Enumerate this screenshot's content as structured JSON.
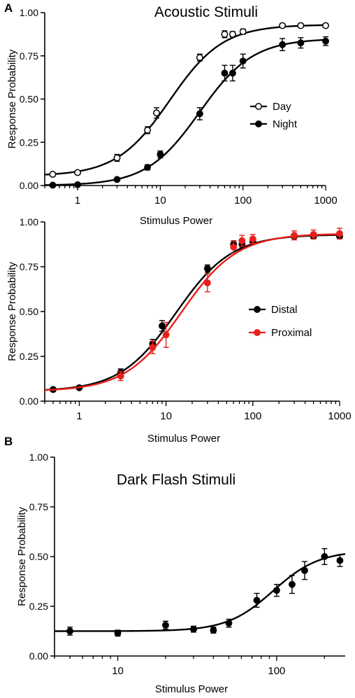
{
  "panel_labels": {
    "a": "A",
    "b": "B"
  },
  "chart_data": [
    {
      "type": "scatter",
      "title": "Acoustic Stimuli",
      "xlabel": "Stimulus Power",
      "ylabel": "Response Probability",
      "xscale": "log",
      "xlim": [
        0.4,
        1000
      ],
      "ylim": [
        0,
        1
      ],
      "xticks": [
        1,
        10,
        100,
        1000
      ],
      "xtick_labels": [
        "1",
        "10",
        "100",
        "1000"
      ],
      "yticks": [
        0,
        0.25,
        0.5,
        0.75,
        1.0
      ],
      "ytick_labels": [
        "0.00",
        "0.25",
        "0.50",
        "0.75",
        "1.00"
      ],
      "grid": false,
      "legend_position": "right",
      "series": [
        {
          "name": "Day",
          "color": "#000000",
          "marker": "open-circle",
          "x": [
            0.5,
            1,
            3,
            7,
            9,
            30,
            60,
            75,
            100,
            300,
            500,
            1000
          ],
          "y": [
            0.065,
            0.075,
            0.16,
            0.32,
            0.42,
            0.74,
            0.875,
            0.875,
            0.89,
            0.925,
            0.925,
            0.925
          ],
          "err": [
            0.01,
            0.01,
            0.02,
            0.02,
            0.03,
            0.02,
            0.02,
            0.015,
            0.015,
            0.01,
            0.01,
            0.01
          ],
          "fit": {
            "bottom": 0.055,
            "top": 0.93,
            "ec50": 13,
            "hill": 1.35
          }
        },
        {
          "name": "Night",
          "color": "#000000",
          "marker": "filled-circle",
          "x": [
            0.5,
            1,
            3,
            7,
            10,
            30,
            60,
            75,
            100,
            300,
            500,
            1000
          ],
          "y": [
            0.002,
            0.005,
            0.035,
            0.105,
            0.18,
            0.415,
            0.65,
            0.65,
            0.72,
            0.815,
            0.825,
            0.835
          ],
          "err": [
            0.005,
            0.005,
            0.008,
            0.015,
            0.02,
            0.035,
            0.045,
            0.045,
            0.04,
            0.035,
            0.03,
            0.025
          ],
          "fit": {
            "bottom": 0.0,
            "top": 0.85,
            "ec50": 30,
            "hill": 1.35
          }
        }
      ]
    },
    {
      "type": "scatter",
      "title": "",
      "xlabel": "Stimulus Power",
      "ylabel": "Response Probability",
      "xscale": "log",
      "xlim": [
        0.4,
        1000
      ],
      "ylim": [
        0,
        1
      ],
      "xticks": [
        1,
        10,
        100,
        1000
      ],
      "xtick_labels": [
        "1",
        "10",
        "100",
        "1000"
      ],
      "yticks": [
        0,
        0.25,
        0.5,
        0.75,
        1.0
      ],
      "ytick_labels": [
        "0.00",
        "0.25",
        "0.50",
        "0.75",
        "1.00"
      ],
      "grid": false,
      "legend_position": "right",
      "series": [
        {
          "name": "Distal",
          "color": "#000000",
          "marker": "filled-circle",
          "x": [
            0.5,
            1,
            3,
            7,
            9,
            30,
            60,
            75,
            100,
            300,
            500,
            1000
          ],
          "y": [
            0.065,
            0.075,
            0.16,
            0.32,
            0.42,
            0.74,
            0.875,
            0.875,
            0.89,
            0.92,
            0.92,
            0.92
          ],
          "err": [
            0.01,
            0.01,
            0.02,
            0.025,
            0.03,
            0.02,
            0.02,
            0.015,
            0.015,
            0.01,
            0.01,
            0.01
          ],
          "fit": {
            "bottom": 0.055,
            "top": 0.93,
            "ec50": 13,
            "hill": 1.35
          }
        },
        {
          "name": "Proximal",
          "color": "#e8201c",
          "marker": "filled-circle",
          "x": [
            3,
            7,
            10,
            30,
            60,
            75,
            100,
            300,
            500,
            1000
          ],
          "y": [
            0.14,
            0.3,
            0.37,
            0.66,
            0.86,
            0.895,
            0.905,
            0.925,
            0.93,
            0.935
          ],
          "err": [
            0.025,
            0.035,
            0.07,
            0.05,
            0.035,
            0.03,
            0.025,
            0.025,
            0.025,
            0.03
          ],
          "fit": {
            "bottom": 0.055,
            "top": 0.935,
            "ec50": 15,
            "hill": 1.35
          }
        }
      ]
    },
    {
      "type": "scatter",
      "title": "Dark Flash Stimuli",
      "xlabel": "Stimulus Power",
      "ylabel": "Response Probability",
      "xscale": "log",
      "xlim": [
        4,
        270
      ],
      "ylim": [
        0,
        1
      ],
      "xticks": [
        10,
        100
      ],
      "xtick_labels": [
        "10",
        "100"
      ],
      "yticks": [
        0,
        0.25,
        0.5,
        0.75,
        1.0
      ],
      "ytick_labels": [
        "0.00",
        "0.25",
        "0.50",
        "0.75",
        "1.00"
      ],
      "grid": false,
      "series": [
        {
          "name": "",
          "color": "#000000",
          "marker": "filled-circle",
          "x": [
            5,
            10,
            20,
            30,
            40,
            50,
            75,
            100,
            125,
            150,
            200,
            250
          ],
          "y": [
            0.125,
            0.115,
            0.155,
            0.135,
            0.13,
            0.165,
            0.28,
            0.33,
            0.36,
            0.43,
            0.5,
            0.48
          ],
          "err": [
            0.02,
            0.015,
            0.02,
            0.015,
            0.015,
            0.02,
            0.035,
            0.03,
            0.045,
            0.045,
            0.04,
            0.03
          ],
          "fit": {
            "bottom": 0.125,
            "top": 0.53,
            "ec50": 95,
            "hill": 3.0
          }
        }
      ]
    }
  ]
}
